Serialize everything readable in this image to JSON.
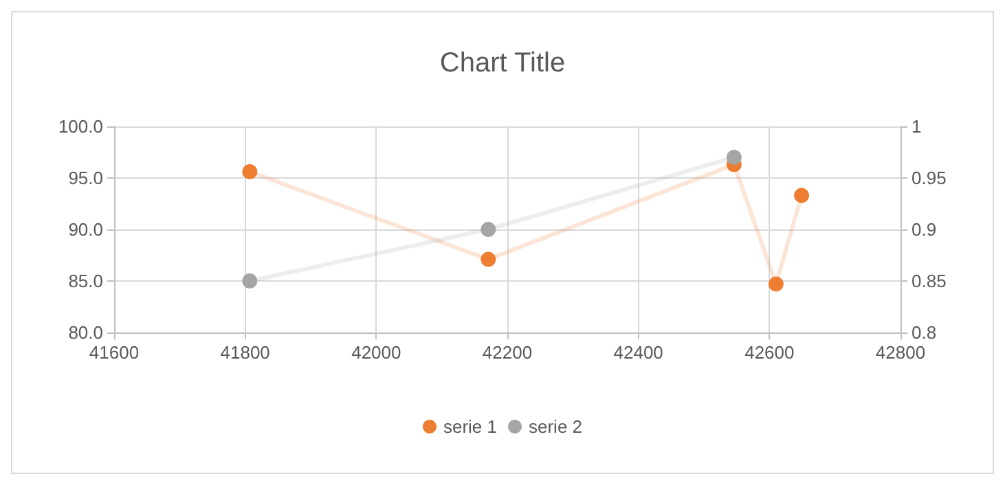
{
  "chart_data": {
    "type": "line",
    "title": "Chart Title",
    "x": [
      41807,
      42171,
      42546,
      42610,
      42649
    ],
    "series": [
      {
        "name": "serie 1",
        "color": "#ed7d31",
        "values": [
          95.6,
          87.1,
          96.3,
          84.7,
          93.3
        ]
      },
      {
        "name": "serie 2",
        "color": "#a5a5a5",
        "axis": "y2",
        "x": [
          41807,
          42171,
          42546
        ],
        "values": [
          0.85,
          0.9,
          0.97
        ]
      }
    ],
    "xlim": [
      41600,
      42800
    ],
    "xticks": [
      41600,
      41800,
      42000,
      42200,
      42400,
      42600,
      42800
    ],
    "ylim": [
      80,
      100
    ],
    "yticks": [
      {
        "value": 80,
        "label": "80.0"
      },
      {
        "value": 85,
        "label": "85.0"
      },
      {
        "value": 90,
        "label": "90.0"
      },
      {
        "value": 95,
        "label": "95.0"
      },
      {
        "value": 100,
        "label": "100.0"
      }
    ],
    "y2lim": [
      0.8,
      1
    ],
    "y2ticks": [
      0.8,
      0.85,
      0.9,
      0.95,
      1
    ],
    "grid": true,
    "legend": "bottom",
    "marker": "circle",
    "line_style": "solid"
  }
}
